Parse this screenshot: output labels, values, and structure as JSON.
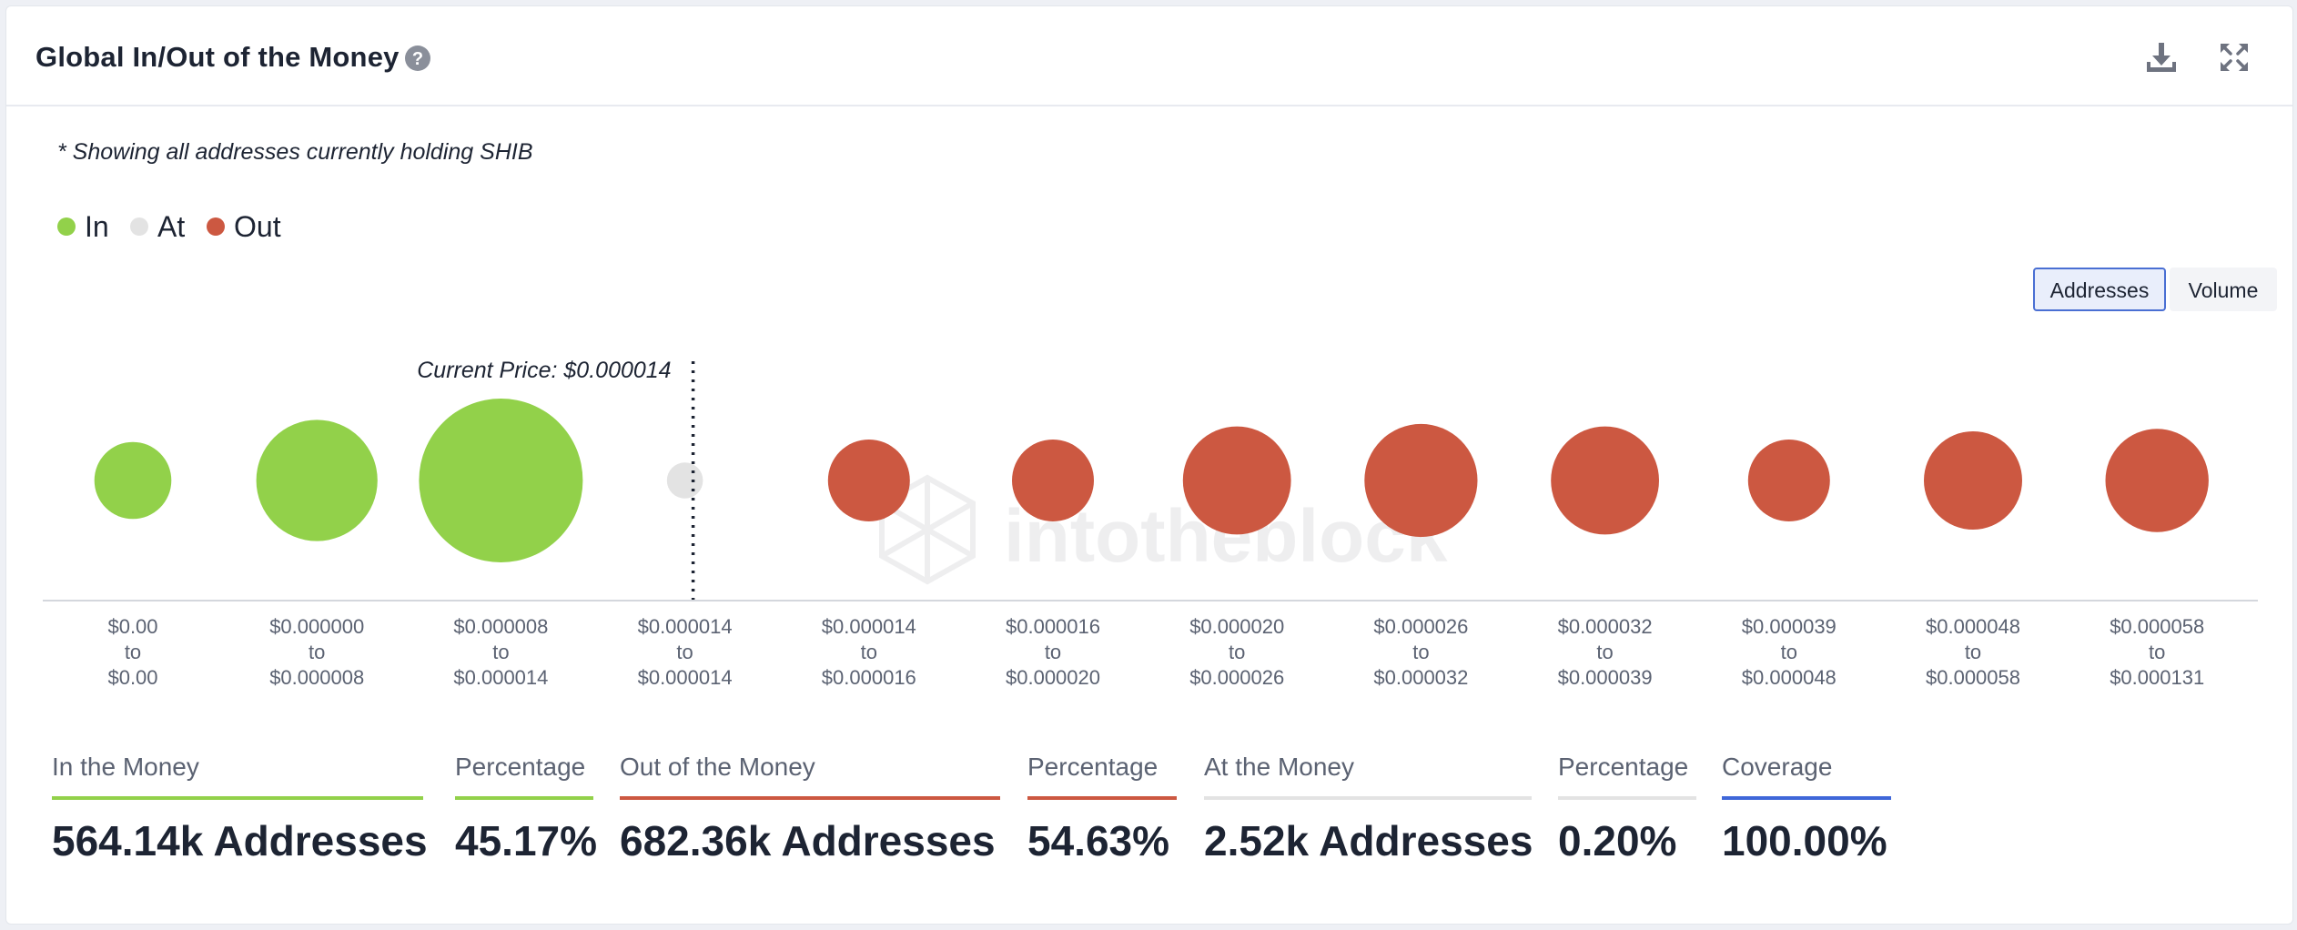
{
  "header": {
    "title": "Global In/Out of the Money",
    "help_icon": "question-circle-icon",
    "download_icon": "download-icon",
    "expand_icon": "expand-icon"
  },
  "note": "* Showing all addresses currently holding SHIB",
  "legend": [
    {
      "label": "In",
      "color": "#92d14a"
    },
    {
      "label": "At",
      "color": "#e3e3e3"
    },
    {
      "label": "Out",
      "color": "#cc5841"
    }
  ],
  "toggle": {
    "addresses": "Addresses",
    "volume": "Volume",
    "selected": "Addresses"
  },
  "watermark": "intotheblock",
  "chart_data": {
    "type": "bubble",
    "title": "Global In/Out of the Money",
    "measure": "Addresses",
    "current_price_label": "Current Price: $0.000014",
    "current_price_bucket_index": 3,
    "bubbles": [
      {
        "range": [
          "$0.00",
          "to",
          "$0.00"
        ],
        "status": "In",
        "relative_size": 0.47
      },
      {
        "range": [
          "$0.000000",
          "to",
          "$0.000008"
        ],
        "status": "In",
        "relative_size": 0.74
      },
      {
        "range": [
          "$0.000008",
          "to",
          "$0.000014"
        ],
        "status": "In",
        "relative_size": 1.0
      },
      {
        "range": [
          "$0.000014",
          "to",
          "$0.000014"
        ],
        "status": "At",
        "relative_size": 0.22
      },
      {
        "range": [
          "$0.000014",
          "to",
          "$0.000016"
        ],
        "status": "Out",
        "relative_size": 0.5
      },
      {
        "range": [
          "$0.000016",
          "to",
          "$0.000020"
        ],
        "status": "Out",
        "relative_size": 0.5
      },
      {
        "range": [
          "$0.000020",
          "to",
          "$0.000026"
        ],
        "status": "Out",
        "relative_size": 0.66
      },
      {
        "range": [
          "$0.000026",
          "to",
          "$0.000032"
        ],
        "status": "Out",
        "relative_size": 0.69
      },
      {
        "range": [
          "$0.000032",
          "to",
          "$0.000039"
        ],
        "status": "Out",
        "relative_size": 0.66
      },
      {
        "range": [
          "$0.000039",
          "to",
          "$0.000048"
        ],
        "status": "Out",
        "relative_size": 0.5
      },
      {
        "range": [
          "$0.000048",
          "to",
          "$0.000058"
        ],
        "status": "Out",
        "relative_size": 0.6
      },
      {
        "range": [
          "$0.000058",
          "to",
          "$0.000131"
        ],
        "status": "Out",
        "relative_size": 0.63
      }
    ]
  },
  "stats": [
    {
      "label": "In the Money",
      "value": "564.14k Addresses",
      "color": "#92d14a"
    },
    {
      "label": "Percentage",
      "value": "45.17%",
      "color": "#92d14a"
    },
    {
      "label": "Out of the Money",
      "value": "682.36k Addresses",
      "color": "#cc5841"
    },
    {
      "label": "Percentage",
      "value": "54.63%",
      "color": "#cc5841"
    },
    {
      "label": "At the Money",
      "value": "2.52k Addresses",
      "color": "#e3e3e3"
    },
    {
      "label": "Percentage",
      "value": "0.20%",
      "color": "#e3e3e3"
    },
    {
      "label": "Coverage",
      "value": "100.00%",
      "color": "#3f67d9"
    }
  ]
}
